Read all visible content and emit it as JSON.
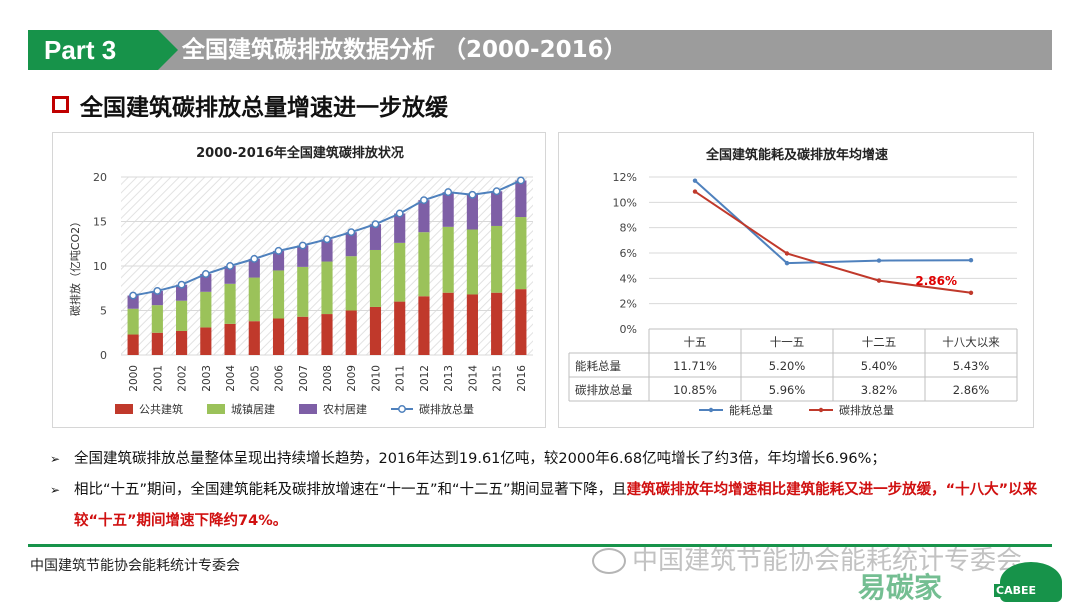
{
  "header": {
    "part": "Part 3",
    "title": "全国建筑碳排放数据分析 （2000-2016）"
  },
  "subtitle": "全国建筑碳排放总量增速进一步放缓",
  "chart_data": [
    {
      "type": "bar",
      "stacked": true,
      "title": "2000-2016年全国建筑碳排放状况",
      "ylabel": "碳排放（亿吨CO2）",
      "ylim": [
        0,
        20
      ],
      "yticks": [
        0,
        5,
        10,
        15,
        20
      ],
      "categories": [
        "2000",
        "2001",
        "2002",
        "2003",
        "2004",
        "2005",
        "2006",
        "2007",
        "2008",
        "2009",
        "2010",
        "2011",
        "2012",
        "2013",
        "2014",
        "2015",
        "2016"
      ],
      "series": [
        {
          "name": "公共建筑",
          "color": "#c0392b",
          "values": [
            2.3,
            2.5,
            2.7,
            3.1,
            3.5,
            3.8,
            4.1,
            4.3,
            4.6,
            5.0,
            5.4,
            6.0,
            6.6,
            7.0,
            6.8,
            7.0,
            7.4
          ]
        },
        {
          "name": "城镇居建",
          "color": "#9bc25a",
          "values": [
            2.9,
            3.1,
            3.4,
            4.0,
            4.5,
            4.9,
            5.4,
            5.6,
            5.9,
            6.1,
            6.4,
            6.6,
            7.2,
            7.4,
            7.3,
            7.5,
            8.1
          ]
        },
        {
          "name": "农村居建",
          "color": "#7e5fa6",
          "values": [
            1.48,
            1.6,
            1.8,
            2.0,
            2.0,
            2.1,
            2.2,
            2.4,
            2.5,
            2.7,
            2.9,
            3.3,
            3.6,
            3.9,
            3.9,
            3.9,
            4.11
          ]
        },
        {
          "name": "碳排放总量",
          "type": "line",
          "color": "#4f81bd",
          "values": [
            6.68,
            7.2,
            7.9,
            9.1,
            10.0,
            10.8,
            11.7,
            12.3,
            13.0,
            13.8,
            14.7,
            15.9,
            17.4,
            18.3,
            18.0,
            18.4,
            19.61
          ]
        }
      ]
    },
    {
      "type": "line",
      "title": "全国建筑能耗及碳排放年均增速",
      "ylim": [
        0,
        12
      ],
      "yticks": [
        "0%",
        "2%",
        "4%",
        "6%",
        "8%",
        "10%",
        "12%"
      ],
      "categories": [
        "十五",
        "十一五",
        "十二五",
        "十八大以来"
      ],
      "series": [
        {
          "name": "能耗总量",
          "color": "#4f81bd",
          "values": [
            11.71,
            5.2,
            5.4,
            5.43
          ],
          "labels": [
            "11.71%",
            "5.20%",
            "5.40%",
            "5.43%"
          ]
        },
        {
          "name": "碳排放总量",
          "color": "#c0392b",
          "values": [
            10.85,
            5.96,
            3.82,
            2.86
          ],
          "labels": [
            "10.85%",
            "5.96%",
            "3.82%",
            "2.86%"
          ]
        }
      ],
      "annotation": "2.86%"
    }
  ],
  "bullets": {
    "b1": "全国建筑碳排放总量整体呈现出持续增长趋势，2016年达到19.61亿吨，较2000年6.68亿吨增长了约3倍，年均增长6.96%；",
    "b2_plain": "相比“十五”期间，全国建筑能耗及碳排放增速在“十一五”和“十二五”期间显著下降，且",
    "b2_red": "建筑碳排放年均增速相比建筑能耗又进一步放缓，“十八大”以来较“十五”期间增速下降约74%。"
  },
  "footer": {
    "org": "中国建筑节能协会能耗统计专委会",
    "watermark": "中国建筑节能协会能耗统计专委会",
    "brand": "易碳家",
    "logo": "CABEE"
  }
}
